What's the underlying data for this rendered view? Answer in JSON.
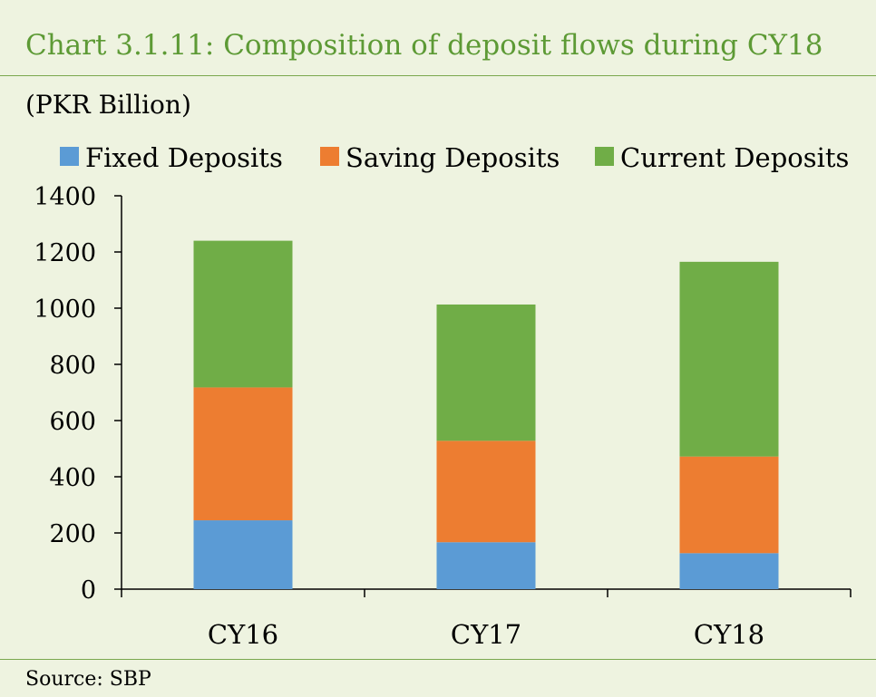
{
  "header": {
    "title": "Chart 3.1.11: Composition of deposit flows during CY18",
    "unit": "(PKR Billion)"
  },
  "footer": {
    "source": "Source: SBP"
  },
  "chart_data": {
    "type": "bar",
    "stacked": true,
    "title": "Chart 3.1.11: Composition of deposit flows during CY18",
    "ylabel": "(PKR Billion)",
    "xlabel": "",
    "categories": [
      "CY16",
      "CY17",
      "CY18"
    ],
    "series": [
      {
        "name": "Fixed Deposits",
        "color": "#5b9bd5",
        "values": [
          245,
          167,
          128
        ]
      },
      {
        "name": "Saving Deposits",
        "color": "#ed7d31",
        "values": [
          473,
          361,
          344
        ]
      },
      {
        "name": "Current Deposits",
        "color": "#70ad47",
        "values": [
          522,
          485,
          693
        ]
      }
    ],
    "ylim": [
      0,
      1400
    ],
    "yticks": [
      0,
      200,
      400,
      600,
      800,
      1000,
      1200,
      1400
    ],
    "legend_position": "top",
    "grid": false
  }
}
